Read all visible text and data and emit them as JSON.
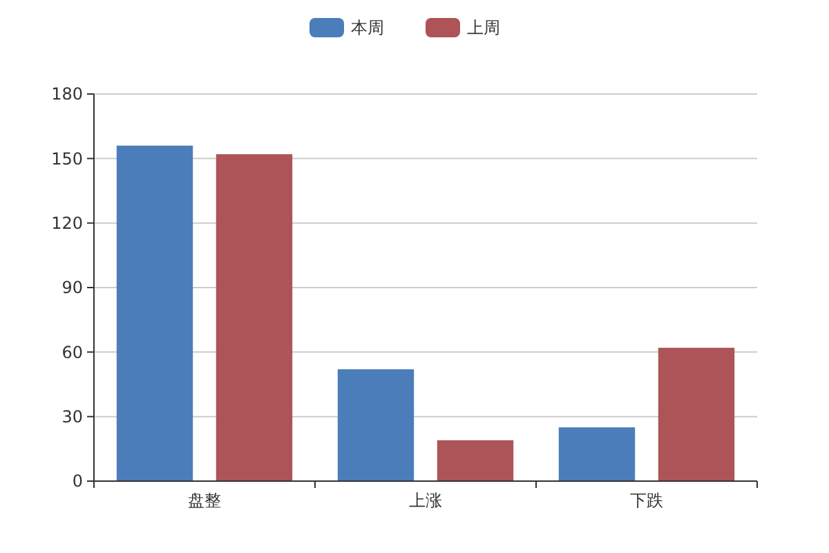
{
  "chart_data": {
    "type": "bar",
    "categories": [
      "盘整",
      "上涨",
      "下跌"
    ],
    "series": [
      {
        "name": "本周",
        "color": "#4b7dba",
        "values": [
          156,
          52,
          25
        ]
      },
      {
        "name": "上周",
        "color": "#ad5458",
        "values": [
          152,
          19,
          62
        ]
      }
    ],
    "ylim": [
      0,
      180
    ],
    "yticks": [
      0,
      30,
      60,
      90,
      120,
      150,
      180
    ],
    "grid": "y",
    "legend": "top"
  }
}
